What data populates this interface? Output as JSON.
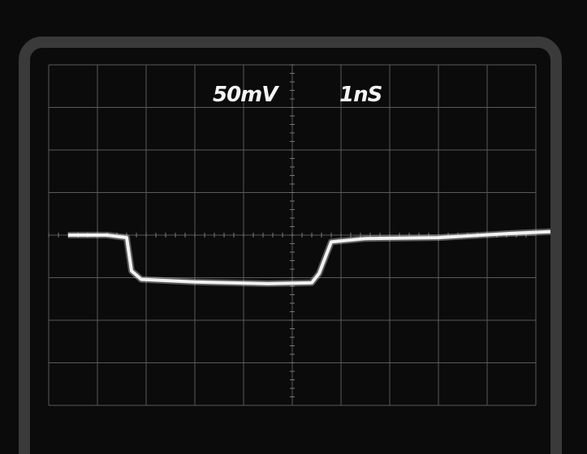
{
  "screen": {
    "volts_per_div": "50mV",
    "time_per_div": "1nS"
  },
  "colors": {
    "background": "#0b0b0b",
    "bezel": "#3a3a3a",
    "graticule": "#5a5a5a",
    "trace": "#f2f2f2"
  },
  "chart_data": {
    "type": "line",
    "title": "",
    "xlabel": "",
    "ylabel": "",
    "x_divisions": 10,
    "y_divisions": 8,
    "x_units": "ns",
    "y_units": "mV",
    "xlim": [
      0,
      10
    ],
    "ylim": [
      -200,
      200
    ],
    "series": [
      {
        "values_x": [
          0.4,
          1.2,
          1.6,
          1.7,
          1.9,
          3.0,
          4.5,
          5.4,
          5.55,
          5.8,
          6.5,
          8.0,
          9.5,
          10.3
        ],
        "values_y": [
          0,
          0,
          -3,
          -42,
          -52,
          -55,
          -57,
          -56,
          -45,
          -8,
          -4,
          -3,
          2,
          4
        ]
      }
    ]
  }
}
